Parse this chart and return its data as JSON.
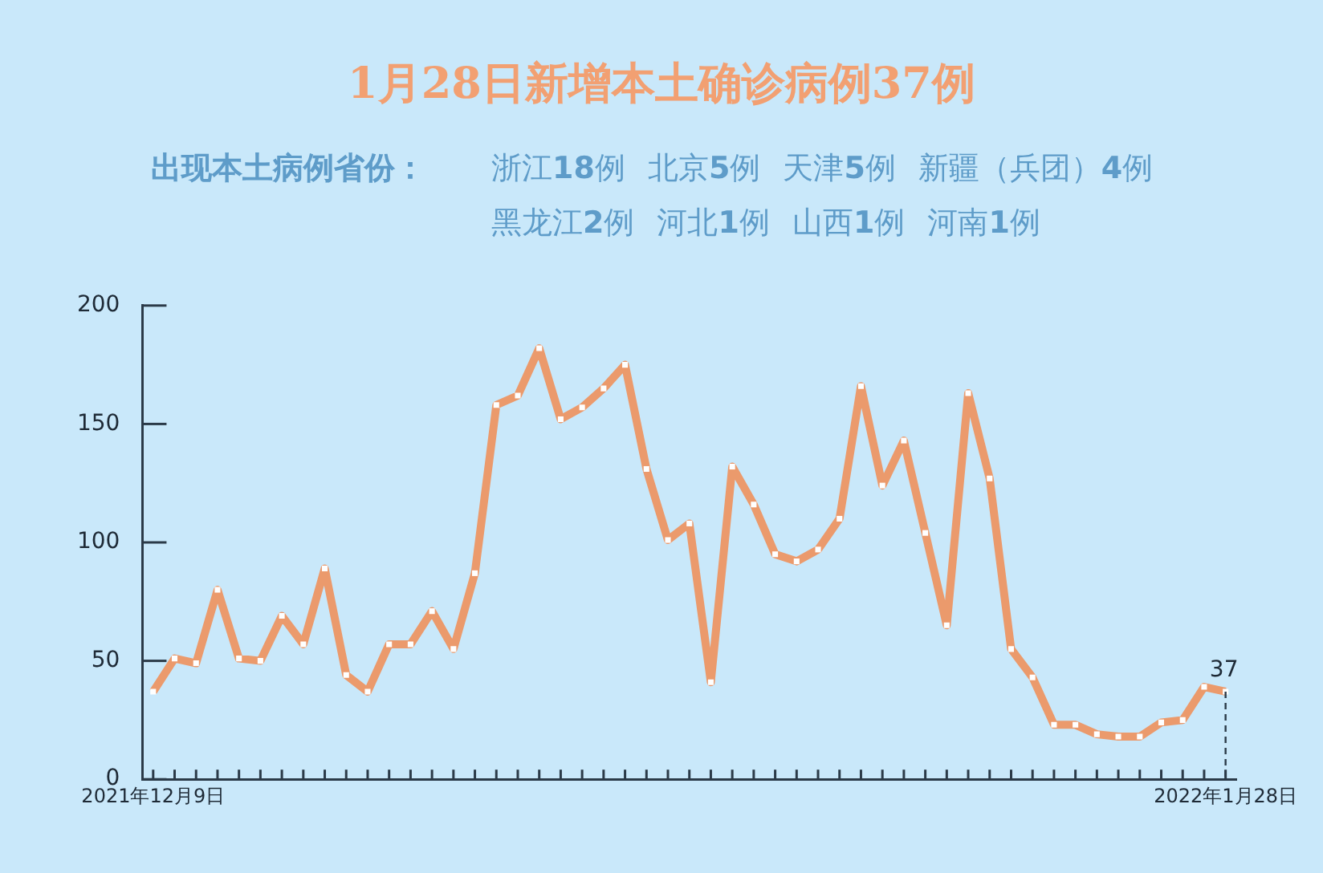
{
  "chart_data": {
    "type": "line",
    "title": "1月28日新增本土确诊病例37例",
    "subtitle": "出现本土病例省份：",
    "categories": [
      "2021年12月9日",
      null,
      null,
      null,
      null,
      null,
      null,
      null,
      null,
      null,
      null,
      null,
      null,
      null,
      null,
      null,
      null,
      null,
      null,
      null,
      null,
      null,
      null,
      null,
      null,
      null,
      null,
      null,
      null,
      null,
      null,
      null,
      null,
      null,
      null,
      null,
      null,
      null,
      null,
      null,
      null,
      null,
      null,
      null,
      null,
      null,
      null,
      null,
      null,
      null,
      "2022年1月28日"
    ],
    "series": [
      {
        "color": "#eb9a6c",
        "values": [
          37,
          51,
          49,
          80,
          51,
          50,
          69,
          57,
          89,
          44,
          37,
          57,
          57,
          71,
          55,
          87,
          158,
          162,
          182,
          152,
          157,
          165,
          175,
          131,
          101,
          108,
          41,
          132,
          116,
          95,
          92,
          97,
          110,
          166,
          124,
          143,
          104,
          65,
          163,
          127,
          55,
          43,
          23,
          23,
          19,
          18,
          18,
          24,
          25,
          39,
          37
        ]
      }
    ],
    "ylim": [
      0,
      200
    ],
    "yticks": [
      0,
      50,
      100,
      150,
      200
    ],
    "grid": false,
    "legend": false,
    "marker": "square",
    "line_style": "solid",
    "annotations": [
      "浙江18例",
      "北京5例",
      "天津5例",
      "新疆（兵团）4例",
      "黑龙江2例",
      "河北1例",
      "山西1例",
      "河南1例",
      {
        "text": "37",
        "x": "2022年1月28日",
        "y": 37
      }
    ]
  }
}
